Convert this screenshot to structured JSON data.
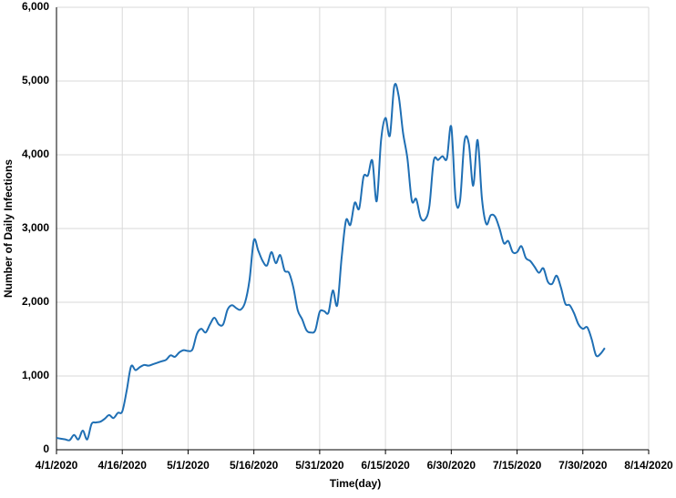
{
  "chart_data": {
    "type": "line",
    "ylabel": "Number of Daily Infections",
    "xlabel": "Time(day)",
    "x": [
      "2020-04-01",
      "2020-04-02",
      "2020-04-03",
      "2020-04-04",
      "2020-04-05",
      "2020-04-06",
      "2020-04-07",
      "2020-04-08",
      "2020-04-09",
      "2020-04-10",
      "2020-04-11",
      "2020-04-12",
      "2020-04-13",
      "2020-04-14",
      "2020-04-15",
      "2020-04-16",
      "2020-04-17",
      "2020-04-18",
      "2020-04-19",
      "2020-04-20",
      "2020-04-21",
      "2020-04-22",
      "2020-04-23",
      "2020-04-24",
      "2020-04-25",
      "2020-04-26",
      "2020-04-27",
      "2020-04-28",
      "2020-04-29",
      "2020-04-30",
      "2020-05-01",
      "2020-05-02",
      "2020-05-03",
      "2020-05-04",
      "2020-05-05",
      "2020-05-06",
      "2020-05-07",
      "2020-05-08",
      "2020-05-09",
      "2020-05-10",
      "2020-05-11",
      "2020-05-12",
      "2020-05-13",
      "2020-05-14",
      "2020-05-15",
      "2020-05-16",
      "2020-05-17",
      "2020-05-18",
      "2020-05-19",
      "2020-05-20",
      "2020-05-21",
      "2020-05-22",
      "2020-05-23",
      "2020-05-24",
      "2020-05-25",
      "2020-05-26",
      "2020-05-27",
      "2020-05-28",
      "2020-05-29",
      "2020-05-30",
      "2020-05-31",
      "2020-06-01",
      "2020-06-02",
      "2020-06-03",
      "2020-06-04",
      "2020-06-05",
      "2020-06-06",
      "2020-06-07",
      "2020-06-08",
      "2020-06-09",
      "2020-06-10",
      "2020-06-11",
      "2020-06-12",
      "2020-06-13",
      "2020-06-14",
      "2020-06-15",
      "2020-06-16",
      "2020-06-17",
      "2020-06-18",
      "2020-06-19",
      "2020-06-20",
      "2020-06-21",
      "2020-06-22",
      "2020-06-23",
      "2020-06-24",
      "2020-06-25",
      "2020-06-26",
      "2020-06-27",
      "2020-06-28",
      "2020-06-29",
      "2020-06-30",
      "2020-07-01",
      "2020-07-02",
      "2020-07-03",
      "2020-07-04",
      "2020-07-05",
      "2020-07-06",
      "2020-07-07",
      "2020-07-08",
      "2020-07-09",
      "2020-07-10",
      "2020-07-11",
      "2020-07-12",
      "2020-07-13",
      "2020-07-14",
      "2020-07-15",
      "2020-07-16",
      "2020-07-17",
      "2020-07-18",
      "2020-07-19",
      "2020-07-20",
      "2020-07-21",
      "2020-07-22",
      "2020-07-23",
      "2020-07-24",
      "2020-07-25",
      "2020-07-26",
      "2020-07-27",
      "2020-07-28",
      "2020-07-29",
      "2020-07-30",
      "2020-07-31",
      "2020-08-01",
      "2020-08-02",
      "2020-08-03",
      "2020-08-04"
    ],
    "series": [
      {
        "name": "Daily Infections",
        "color": "#1f6fb4",
        "values": [
          160,
          150,
          140,
          130,
          200,
          140,
          260,
          140,
          350,
          370,
          380,
          420,
          470,
          430,
          500,
          520,
          800,
          1130,
          1080,
          1120,
          1150,
          1140,
          1160,
          1180,
          1200,
          1220,
          1280,
          1260,
          1320,
          1350,
          1340,
          1360,
          1570,
          1640,
          1590,
          1700,
          1790,
          1700,
          1700,
          1900,
          1960,
          1920,
          1900,
          2000,
          2300,
          2840,
          2700,
          2560,
          2500,
          2680,
          2530,
          2640,
          2430,
          2400,
          2200,
          1890,
          1770,
          1620,
          1590,
          1620,
          1870,
          1880,
          1860,
          2160,
          1960,
          2600,
          3110,
          3050,
          3350,
          3270,
          3700,
          3720,
          3920,
          3370,
          4200,
          4500,
          4260,
          4930,
          4800,
          4300,
          3950,
          3380,
          3400,
          3150,
          3120,
          3300,
          3920,
          3930,
          3980,
          3950,
          4380,
          3400,
          3380,
          4180,
          4150,
          3580,
          4200,
          3400,
          3060,
          3180,
          3160,
          3000,
          2800,
          2830,
          2680,
          2680,
          2760,
          2600,
          2560,
          2480,
          2400,
          2460,
          2280,
          2250,
          2360,
          2200,
          1980,
          1960,
          1850,
          1700,
          1640,
          1660,
          1500,
          1280,
          1300,
          1380
        ]
      }
    ],
    "xlim": [
      "2020-04-01",
      "2020-08-14"
    ],
    "xticks": [
      {
        "value": "2020-04-01",
        "label": "4/1/2020"
      },
      {
        "value": "2020-04-16",
        "label": "4/16/2020"
      },
      {
        "value": "2020-05-01",
        "label": "5/1/2020"
      },
      {
        "value": "2020-05-16",
        "label": "5/16/2020"
      },
      {
        "value": "2020-05-31",
        "label": "5/31/2020"
      },
      {
        "value": "2020-06-15",
        "label": "6/15/2020"
      },
      {
        "value": "2020-06-30",
        "label": "6/30/2020"
      },
      {
        "value": "2020-07-15",
        "label": "7/15/2020"
      },
      {
        "value": "2020-07-30",
        "label": "7/30/2020"
      },
      {
        "value": "2020-08-14",
        "label": "8/14/2020"
      }
    ],
    "ylim": [
      0,
      6000
    ],
    "yticks": [
      0,
      {
        "value": 1000,
        "label": "1,000"
      },
      {
        "value": 2000,
        "label": "2,000"
      },
      {
        "value": 3000,
        "label": "3,000"
      },
      {
        "value": 4000,
        "label": "4,000"
      },
      {
        "value": 5000,
        "label": "5,000"
      },
      {
        "value": 6000,
        "label": "6,000"
      }
    ],
    "grid": true
  }
}
